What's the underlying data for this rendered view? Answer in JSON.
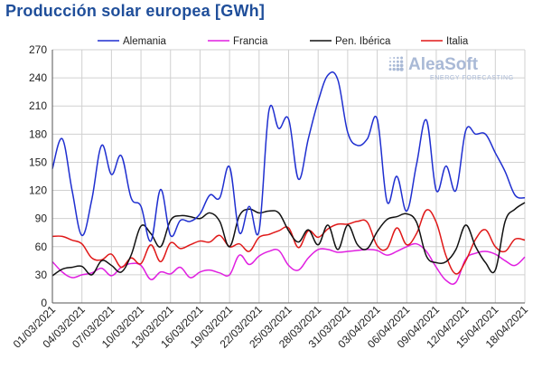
{
  "chart_data": {
    "type": "line",
    "title": "Producción solar europea [GWh]",
    "xlabel": "",
    "ylabel": "",
    "ylim": [
      0,
      270
    ],
    "yticks": [
      0,
      30,
      60,
      90,
      120,
      150,
      180,
      210,
      240,
      270
    ],
    "grid": true,
    "legend_position": "top",
    "x": [
      "01/03/2021",
      "02/03/2021",
      "03/03/2021",
      "04/03/2021",
      "05/03/2021",
      "06/03/2021",
      "07/03/2021",
      "08/03/2021",
      "09/03/2021",
      "10/03/2021",
      "11/03/2021",
      "12/03/2021",
      "13/03/2021",
      "14/03/2021",
      "15/03/2021",
      "16/03/2021",
      "17/03/2021",
      "18/03/2021",
      "19/03/2021",
      "20/03/2021",
      "21/03/2021",
      "22/03/2021",
      "23/03/2021",
      "24/03/2021",
      "25/03/2021",
      "26/03/2021",
      "27/03/2021",
      "28/03/2021",
      "29/03/2021",
      "30/03/2021",
      "31/03/2021",
      "01/04/2021",
      "02/04/2021",
      "03/04/2021",
      "04/04/2021",
      "05/04/2021",
      "06/04/2021",
      "07/04/2021",
      "08/04/2021",
      "09/04/2021",
      "10/04/2021",
      "11/04/2021",
      "12/04/2021",
      "13/04/2021",
      "14/04/2021",
      "15/04/2021",
      "16/04/2021",
      "17/04/2021",
      "18/04/2021"
    ],
    "xticks": [
      "01/03/2021",
      "04/03/2021",
      "07/03/2021",
      "10/03/2021",
      "13/03/2021",
      "16/03/2021",
      "19/03/2021",
      "22/03/2021",
      "25/03/2021",
      "28/03/2021",
      "31/03/2021",
      "03/04/2021",
      "06/04/2021",
      "09/04/2021",
      "12/04/2021",
      "15/04/2021",
      "18/04/2021"
    ],
    "series": [
      {
        "name": "Alemania",
        "color": "#1f2fd0",
        "values": [
          143,
          175,
          120,
          72,
          110,
          168,
          137,
          157,
          112,
          103,
          66,
          121,
          72,
          88,
          87,
          95,
          115,
          112,
          145,
          75,
          103,
          77,
          205,
          186,
          196,
          132,
          175,
          215,
          243,
          238,
          182,
          168,
          175,
          196,
          108,
          135,
          98,
          148,
          195,
          120,
          146,
          120,
          184,
          180,
          180,
          160,
          140,
          115,
          112
        ]
      },
      {
        "name": "Francia",
        "color": "#e01fe0",
        "values": [
          44,
          33,
          27,
          30,
          32,
          37,
          29,
          38,
          42,
          40,
          25,
          33,
          31,
          38,
          27,
          33,
          35,
          32,
          30,
          51,
          41,
          50,
          55,
          56,
          40,
          35,
          48,
          57,
          57,
          54,
          55,
          56,
          57,
          56,
          51,
          55,
          60,
          63,
          55,
          38,
          24,
          22,
          47,
          53,
          55,
          52,
          45,
          40,
          49
        ]
      },
      {
        "name": "Pen. Ibérica",
        "color": "#111111",
        "values": [
          29,
          36,
          38,
          39,
          30,
          45,
          40,
          33,
          51,
          82,
          74,
          60,
          88,
          93,
          92,
          90,
          96,
          87,
          60,
          93,
          100,
          96,
          98,
          96,
          77,
          65,
          78,
          62,
          83,
          57,
          83,
          62,
          58,
          76,
          89,
          92,
          95,
          86,
          50,
          43,
          44,
          57,
          83,
          60,
          43,
          35,
          87,
          100,
          107
        ]
      },
      {
        "name": "Italia",
        "color": "#e01818",
        "values": [
          71,
          71,
          67,
          63,
          48,
          46,
          52,
          38,
          48,
          42,
          62,
          44,
          64,
          58,
          62,
          66,
          65,
          72,
          60,
          63,
          55,
          70,
          73,
          77,
          80,
          59,
          77,
          70,
          79,
          84,
          84,
          87,
          86,
          61,
          58,
          80,
          62,
          74,
          99,
          86,
          50,
          31,
          45,
          68,
          78,
          60,
          55,
          68,
          67
        ]
      }
    ]
  },
  "logo": {
    "main": "AleaSoft",
    "sub": "ENERGY FORECASTING",
    "color": "#a9b9d6"
  }
}
